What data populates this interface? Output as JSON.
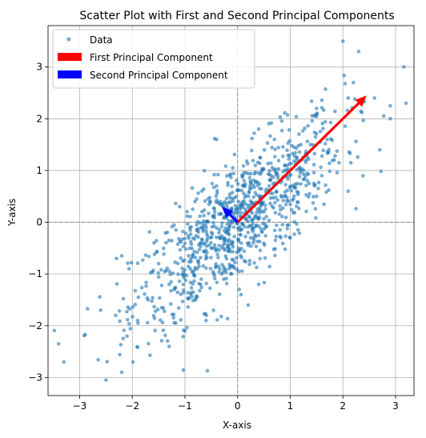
{
  "chart_data": {
    "type": "scatter",
    "title": "Scatter Plot with First and Second Principal Components",
    "xlabel": "X-axis",
    "ylabel": "Y-axis",
    "xlim": [
      -3.6,
      3.35
    ],
    "ylim": [
      -3.35,
      3.8
    ],
    "xticks": [
      -3,
      -2,
      -1,
      0,
      1,
      2,
      3
    ],
    "yticks": [
      -3,
      -2,
      -1,
      0,
      1,
      2,
      3
    ],
    "xtick_labels": [
      "−3",
      "−2",
      "−1",
      "0",
      "1",
      "2",
      "3"
    ],
    "ytick_labels": [
      "−3",
      "−2",
      "−1",
      "0",
      "1",
      "2",
      "3"
    ],
    "grid": true,
    "reference_lines": {
      "x": 0,
      "y": 0,
      "style": "dashed"
    },
    "legend_location": "upper-left",
    "series": [
      {
        "name": "Data",
        "kind": "scatter",
        "color": "#1f77b4",
        "alpha": 0.6,
        "approx_count": 1000,
        "approx_mean": [
          0.0,
          0.0
        ],
        "approx_covariance": [
          [
            1.0,
            0.8
          ],
          [
            0.8,
            1.0
          ]
        ],
        "sample_points": [
          [
            -3.3,
            -2.7
          ],
          [
            -3.4,
            -2.35
          ],
          [
            -2.5,
            -3.05
          ],
          [
            -2.2,
            -2.9
          ],
          [
            -2.3,
            -0.7
          ],
          [
            -2.2,
            -0.65
          ],
          [
            -1.3,
            -2.4
          ],
          [
            -1.7,
            -1.5
          ],
          [
            -1.9,
            -1.9
          ],
          [
            -1.0,
            -2.1
          ],
          [
            -0.8,
            -1.5
          ],
          [
            -1.5,
            -0.8
          ],
          [
            -1.1,
            0.3
          ],
          [
            -0.4,
            1.6
          ],
          [
            0.4,
            1.8
          ],
          [
            0.7,
            1.6
          ],
          [
            1.2,
            1.5
          ],
          [
            1.5,
            2.2
          ],
          [
            2.0,
            3.5
          ],
          [
            2.3,
            3.3
          ],
          [
            2.2,
            2.7
          ],
          [
            2.9,
            2.0
          ],
          [
            2.9,
            2.25
          ],
          [
            3.2,
            2.3
          ],
          [
            2.7,
            1.4
          ],
          [
            2.1,
            0.6
          ],
          [
            1.5,
            0.5
          ],
          [
            1.0,
            -0.3
          ],
          [
            0.4,
            -1.2
          ],
          [
            0.2,
            -1.6
          ],
          [
            -0.6,
            -1.9
          ],
          [
            0.3,
            -0.4
          ],
          [
            -0.2,
            0.3
          ],
          [
            -0.5,
            -0.5
          ],
          [
            0.6,
            0.7
          ],
          [
            0.9,
            1.1
          ],
          [
            1.3,
            1.2
          ],
          [
            1.7,
            1.6
          ],
          [
            -0.9,
            -0.9
          ],
          [
            -1.3,
            -1.2
          ],
          [
            2.1,
            2.4
          ],
          [
            2.6,
            2.4
          ],
          [
            -0.3,
            -1.0
          ],
          [
            -0.4,
            0.7
          ],
          [
            0.1,
            0.9
          ],
          [
            1.6,
            0.9
          ],
          [
            -2.6,
            -1.7
          ],
          [
            -2.1,
            -2.2
          ],
          [
            -1.2,
            -1.3
          ],
          [
            0.5,
            0.2
          ]
        ]
      }
    ],
    "vectors": [
      {
        "name": "First Principal Component",
        "color": "#ff0000",
        "from": [
          0,
          0
        ],
        "to": [
          2.45,
          2.45
        ]
      },
      {
        "name": "Second Principal Component",
        "color": "#0000ff",
        "from": [
          0,
          0
        ],
        "to": [
          -0.3,
          0.3
        ]
      }
    ]
  }
}
